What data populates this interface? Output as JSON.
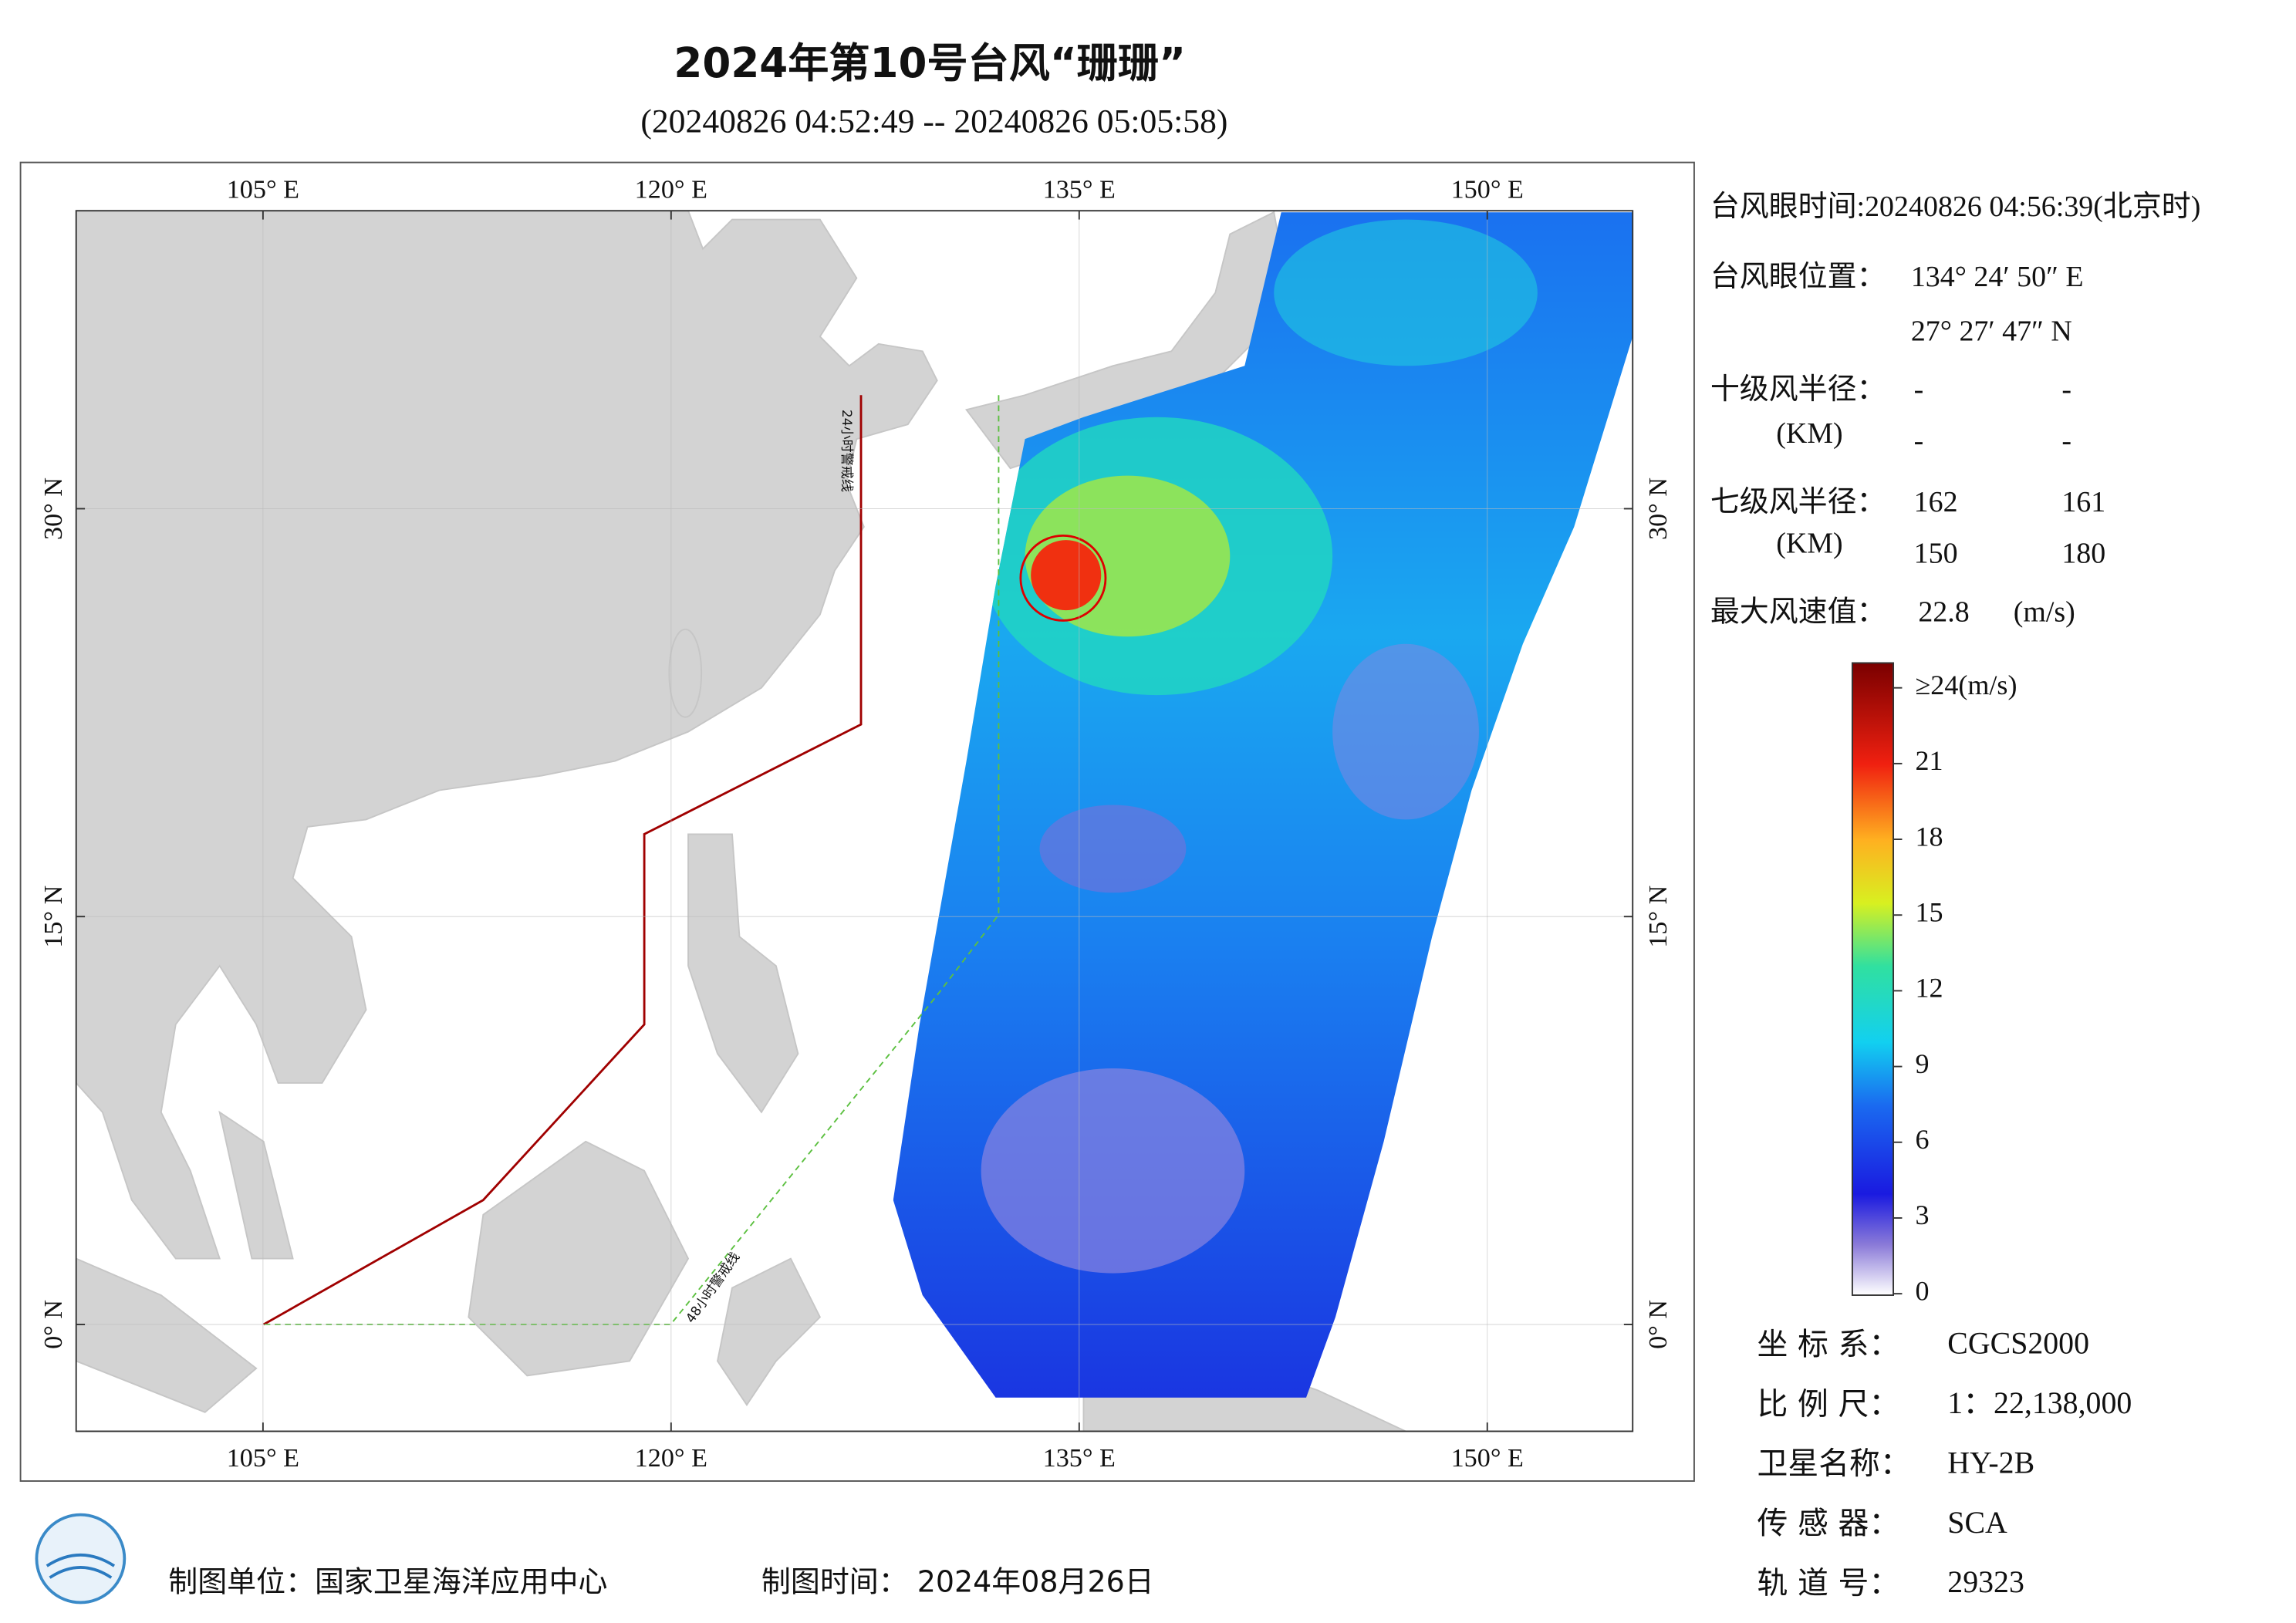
{
  "header": {
    "title": "2024年第10号台风“珊珊”",
    "subtitle": "(20240826 04:52:49 -- 20240826 05:05:58)"
  },
  "map": {
    "lon_ticks": [
      {
        "value": 105,
        "label": "105° E"
      },
      {
        "value": 120,
        "label": "120° E"
      },
      {
        "value": 135,
        "label": "135° E"
      },
      {
        "value": 150,
        "label": "150° E"
      }
    ],
    "lat_ticks": [
      {
        "value": 0,
        "label": "0° N"
      },
      {
        "value": 15,
        "label": "15° N"
      },
      {
        "value": 30,
        "label": "30° N"
      }
    ],
    "warning_24h": "24小时警戒线",
    "warning_48h": "48小时警戒线"
  },
  "info": {
    "eye_time": "台风眼时间:20240826 04:56:39(北京时)",
    "eye_position_label": "台风眼位置：",
    "eye_lon": "134° 24′ 50″ E",
    "eye_lat": "27° 27′ 47″ N",
    "r10_label": "十级风半径：",
    "r10_unit": "(KM)",
    "r10_values": [
      "-",
      "-",
      "-",
      "-"
    ],
    "r7_label": "七级风半径：",
    "r7_unit": "(KM)",
    "r7_values": [
      162,
      161,
      150,
      180
    ],
    "max_wind_label": "最大风速值：",
    "max_wind": 22.8,
    "max_wind_unit": "(m/s)"
  },
  "colorbar": {
    "ticks": [
      0,
      3,
      6,
      9,
      12,
      15,
      18,
      21,
      {
        "value": 24,
        "label": "≥24(m/s)"
      }
    ]
  },
  "metadata": [
    {
      "label": "坐 标 系：",
      "value": "CGCS2000"
    },
    {
      "label": "比 例 尺：",
      "value": "1：22,138,000"
    },
    {
      "label": "卫星名称：",
      "value": "HY-2B"
    },
    {
      "label": "传 感 器：",
      "value": "SCA"
    },
    {
      "label": "轨 道 号：",
      "value": "29323"
    }
  ],
  "footer": {
    "unit": "制图单位：国家卫星海洋应用中心",
    "time": "制图时间： 2024年08月26日"
  }
}
